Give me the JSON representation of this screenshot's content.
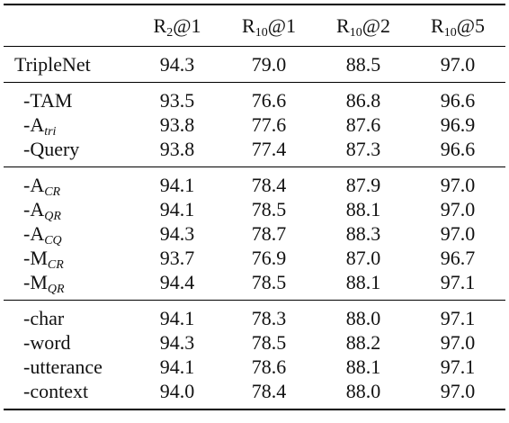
{
  "table": {
    "headers": [
      {
        "base": "R",
        "sub": "2",
        "suffix": "@1"
      },
      {
        "base": "R",
        "sub": "10",
        "suffix": "@1"
      },
      {
        "base": "R",
        "sub": "10",
        "suffix": "@2"
      },
      {
        "base": "R",
        "sub": "10",
        "suffix": "@5"
      }
    ],
    "groups": [
      {
        "rows": [
          {
            "label": "TripleNet",
            "label_sub": "",
            "values": [
              "94.3",
              "79.0",
              "88.5",
              "97.0"
            ]
          }
        ]
      },
      {
        "rows": [
          {
            "label": "-TAM",
            "label_sub": "",
            "values": [
              "93.5",
              "76.6",
              "86.8",
              "96.6"
            ]
          },
          {
            "label": "-A",
            "label_sub": "tri",
            "values": [
              "93.8",
              "77.6",
              "87.6",
              "96.9"
            ]
          },
          {
            "label": "-Query",
            "label_sub": "",
            "values": [
              "93.8",
              "77.4",
              "87.3",
              "96.6"
            ]
          }
        ]
      },
      {
        "rows": [
          {
            "label": "-A",
            "label_sub": "CR",
            "values": [
              "94.1",
              "78.4",
              "87.9",
              "97.0"
            ]
          },
          {
            "label": "-A",
            "label_sub": "QR",
            "values": [
              "94.1",
              "78.5",
              "88.1",
              "97.0"
            ]
          },
          {
            "label": "-A",
            "label_sub": "CQ",
            "values": [
              "94.3",
              "78.7",
              "88.3",
              "97.0"
            ]
          },
          {
            "label": "-M",
            "label_sub": "CR",
            "values": [
              "93.7",
              "76.9",
              "87.0",
              "96.7"
            ]
          },
          {
            "label": "-M",
            "label_sub": "QR",
            "values": [
              "94.4",
              "78.5",
              "88.1",
              "97.1"
            ]
          }
        ]
      },
      {
        "rows": [
          {
            "label": "-char",
            "label_sub": "",
            "values": [
              "94.1",
              "78.3",
              "88.0",
              "97.1"
            ]
          },
          {
            "label": "-word",
            "label_sub": "",
            "values": [
              "94.3",
              "78.5",
              "88.2",
              "97.0"
            ]
          },
          {
            "label": "-utterance",
            "label_sub": "",
            "values": [
              "94.1",
              "78.6",
              "88.1",
              "97.1"
            ]
          },
          {
            "label": "-context",
            "label_sub": "",
            "values": [
              "94.0",
              "78.4",
              "88.0",
              "97.0"
            ]
          }
        ]
      }
    ]
  }
}
